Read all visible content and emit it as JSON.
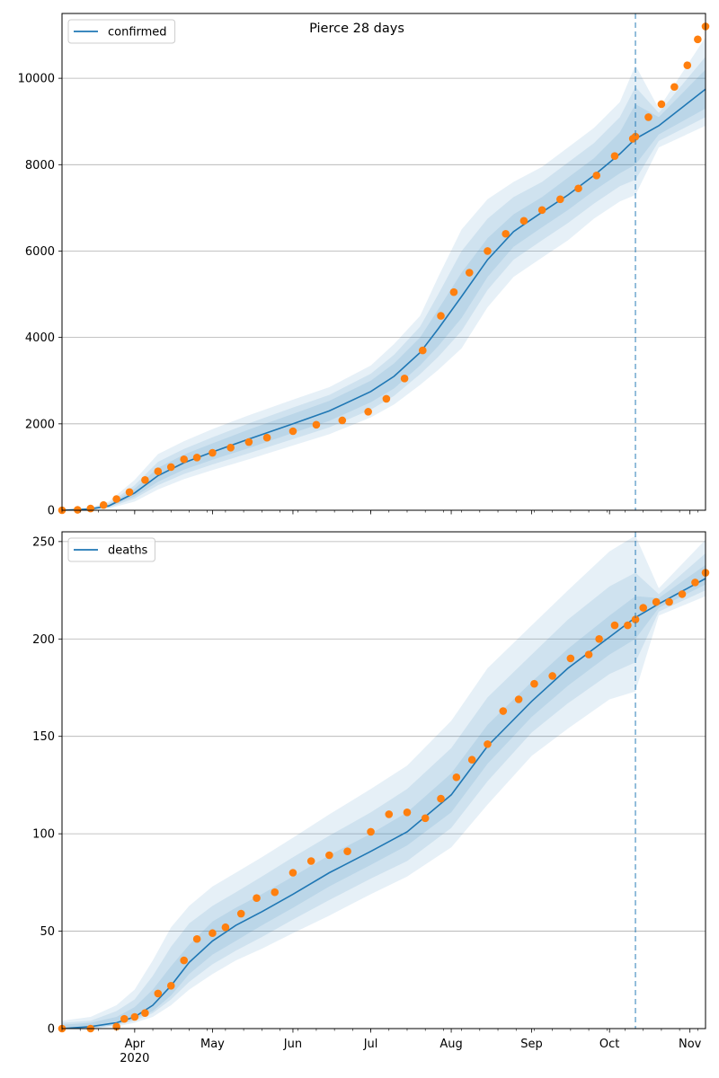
{
  "title": "Pierce 28 days",
  "colors": {
    "model_line": "#1f77b4",
    "band": "#1f77b4",
    "observed": "#ff7f0e",
    "vline": "#1f77b4",
    "grid": "#b0b0b0"
  },
  "x_axis": {
    "start": "2020-03-04",
    "end": "2020-11-07",
    "month_ticks": [
      {
        "date": "2020-04-01",
        "label": "Apr"
      },
      {
        "date": "2020-05-01",
        "label": "May"
      },
      {
        "date": "2020-06-01",
        "label": "Jun"
      },
      {
        "date": "2020-07-01",
        "label": "Jul"
      },
      {
        "date": "2020-08-01",
        "label": "Aug"
      },
      {
        "date": "2020-09-01",
        "label": "Sep"
      },
      {
        "date": "2020-10-01",
        "label": "Oct"
      },
      {
        "date": "2020-11-01",
        "label": "Nov"
      }
    ],
    "year_label": "2020",
    "forecast_start": "2020-10-11"
  },
  "chart_data": [
    {
      "type": "line",
      "legend": "confirmed",
      "legend_position": "upper-left",
      "ylim": [
        0,
        11500
      ],
      "yticks": [
        0,
        2000,
        4000,
        6000,
        8000,
        10000
      ],
      "grid": "horizontal",
      "model": {
        "x": [
          "2020-03-04",
          "2020-03-15",
          "2020-03-22",
          "2020-04-01",
          "2020-04-10",
          "2020-04-20",
          "2020-05-01",
          "2020-05-15",
          "2020-06-01",
          "2020-06-15",
          "2020-07-01",
          "2020-07-10",
          "2020-07-20",
          "2020-07-27",
          "2020-08-05",
          "2020-08-15",
          "2020-08-25",
          "2020-09-05",
          "2020-09-15",
          "2020-09-25",
          "2020-10-05",
          "2020-10-11",
          "2020-10-20",
          "2020-11-07"
        ],
        "median": [
          0,
          30,
          100,
          400,
          800,
          1100,
          1350,
          1650,
          2000,
          2300,
          2750,
          3100,
          3650,
          4200,
          4950,
          5800,
          6450,
          6900,
          7300,
          7750,
          8250,
          8600,
          8900,
          9750
        ],
        "bands": [
          {
            "lower": [
              0,
              10,
              40,
              200,
              480,
              720,
              930,
              1180,
              1500,
              1760,
              2150,
              2450,
              2900,
              3250,
              3750,
              4700,
              5400,
              5850,
              6250,
              6750,
              7150,
              7300,
              8400,
              8900
            ],
            "upper": [
              0,
              60,
              200,
              700,
              1300,
              1600,
              1880,
              2200,
              2560,
              2850,
              3350,
              3850,
              4500,
              5400,
              6500,
              7200,
              7600,
              7950,
              8400,
              8850,
              9450,
              10300,
              9300,
              10950
            ]
          },
          {
            "lower": [
              0,
              15,
              60,
              270,
              580,
              840,
              1060,
              1320,
              1650,
              1920,
              2330,
              2650,
              3150,
              3550,
              4150,
              5100,
              5800,
              6250,
              6650,
              7100,
              7500,
              7650,
              8550,
              9100
            ],
            "upper": [
              0,
              50,
              160,
              580,
              1120,
              1420,
              1690,
              2010,
              2380,
              2670,
              3160,
              3600,
              4250,
              5000,
              6000,
              6750,
              7250,
              7600,
              8050,
              8500,
              9100,
              9800,
              9200,
              10500
            ]
          },
          {
            "lower": [
              0,
              20,
              80,
              320,
              660,
              940,
              1170,
              1440,
              1790,
              2070,
              2500,
              2820,
              3350,
              3800,
              4450,
              5400,
              6100,
              6550,
              6950,
              7400,
              7800,
              8000,
              8700,
              9300
            ],
            "upper": [
              0,
              42,
              130,
              500,
              980,
              1290,
              1550,
              1870,
              2230,
              2530,
              3000,
              3400,
              4000,
              4650,
              5500,
              6300,
              6850,
              7250,
              7700,
              8150,
              8750,
              9400,
              9100,
              10200
            ]
          }
        ]
      },
      "observed": {
        "x": [
          "2020-03-04",
          "2020-03-10",
          "2020-03-15",
          "2020-03-20",
          "2020-03-25",
          "2020-03-30",
          "2020-04-05",
          "2020-04-10",
          "2020-04-15",
          "2020-04-20",
          "2020-04-25",
          "2020-05-01",
          "2020-05-08",
          "2020-05-15",
          "2020-05-22",
          "2020-06-01",
          "2020-06-10",
          "2020-06-20",
          "2020-06-30",
          "2020-07-07",
          "2020-07-14",
          "2020-07-21",
          "2020-07-28",
          "2020-08-02",
          "2020-08-08",
          "2020-08-15",
          "2020-08-22",
          "2020-08-29",
          "2020-09-05",
          "2020-09-12",
          "2020-09-19",
          "2020-09-26",
          "2020-10-03",
          "2020-10-10",
          "2020-10-11",
          "2020-10-16",
          "2020-10-21",
          "2020-10-26",
          "2020-10-31",
          "2020-11-04",
          "2020-11-07"
        ],
        "y": [
          0,
          10,
          40,
          120,
          260,
          420,
          700,
          900,
          1000,
          1180,
          1220,
          1330,
          1450,
          1580,
          1680,
          1830,
          1980,
          2080,
          2280,
          2580,
          3050,
          3700,
          4500,
          5050,
          5500,
          6000,
          6400,
          6700,
          6950,
          7200,
          7450,
          7750,
          8200,
          8600,
          8650,
          9100,
          9400,
          9800,
          10300,
          10900,
          11200
        ]
      }
    },
    {
      "type": "line",
      "legend": "deaths",
      "legend_position": "upper-left",
      "ylim": [
        0,
        255
      ],
      "yticks": [
        0,
        50,
        100,
        150,
        200,
        250
      ],
      "grid": "horizontal",
      "model": {
        "x": [
          "2020-03-04",
          "2020-03-15",
          "2020-03-25",
          "2020-04-01",
          "2020-04-08",
          "2020-04-15",
          "2020-04-22",
          "2020-05-01",
          "2020-05-10",
          "2020-05-20",
          "2020-06-01",
          "2020-06-15",
          "2020-07-01",
          "2020-07-15",
          "2020-08-01",
          "2020-08-15",
          "2020-09-01",
          "2020-09-15",
          "2020-10-01",
          "2020-10-11",
          "2020-10-20",
          "2020-11-07"
        ],
        "median": [
          0,
          1,
          3,
          6,
          12,
          22,
          34,
          45,
          53,
          60,
          69,
          80,
          91,
          101,
          120,
          145,
          168,
          185,
          201,
          211,
          218,
          231
        ],
        "bands": [
          {
            "lower": [
              0,
              0,
              1,
              3,
              6,
              12,
              20,
              28,
              35,
              41,
              49,
              58,
              69,
              78,
              93,
              115,
              140,
              154,
              169,
              173,
              212,
              222
            ],
            "upper": [
              4,
              6,
              12,
              20,
              35,
              52,
              63,
              73,
              80,
              88,
              98,
              110,
              123,
              135,
              158,
              185,
              207,
              225,
              245,
              253,
              226,
              251
            ]
          },
          {
            "lower": [
              0,
              0,
              2,
              4,
              8,
              15,
              24,
              33,
              40,
              47,
              56,
              66,
              77,
              86,
              103,
              127,
              152,
              167,
              182,
              188,
              214,
              225
            ],
            "upper": [
              3,
              4,
              9,
              15,
              27,
              42,
              54,
              63,
              70,
              78,
              88,
              99,
              111,
              123,
              144,
              170,
              192,
              210,
              227,
              234,
              223,
              244
            ]
          },
          {
            "lower": [
              0,
              0,
              2,
              5,
              9,
              17,
              28,
              38,
              45,
              53,
              62,
              73,
              84,
              94,
              111,
              136,
              160,
              176,
              192,
              200,
              216,
              228
            ],
            "upper": [
              2,
              3,
              6,
              11,
              20,
              32,
              43,
              55,
              62,
              69,
              78,
              89,
              100,
              111,
              131,
              156,
              178,
              195,
              212,
              222,
              221,
              238
            ]
          }
        ]
      },
      "observed": {
        "x": [
          "2020-03-04",
          "2020-03-15",
          "2020-03-25",
          "2020-03-28",
          "2020-04-01",
          "2020-04-05",
          "2020-04-10",
          "2020-04-15",
          "2020-04-20",
          "2020-04-25",
          "2020-05-01",
          "2020-05-06",
          "2020-05-12",
          "2020-05-18",
          "2020-05-25",
          "2020-06-01",
          "2020-06-08",
          "2020-06-15",
          "2020-06-22",
          "2020-07-01",
          "2020-07-08",
          "2020-07-15",
          "2020-07-22",
          "2020-07-28",
          "2020-08-03",
          "2020-08-09",
          "2020-08-15",
          "2020-08-21",
          "2020-08-27",
          "2020-09-02",
          "2020-09-09",
          "2020-09-16",
          "2020-09-23",
          "2020-09-27",
          "2020-10-03",
          "2020-10-08",
          "2020-10-11",
          "2020-10-14",
          "2020-10-19",
          "2020-10-24",
          "2020-10-29",
          "2020-11-03",
          "2020-11-07"
        ],
        "y": [
          0,
          0,
          1,
          5,
          6,
          8,
          18,
          22,
          35,
          46,
          49,
          52,
          59,
          67,
          70,
          80,
          86,
          89,
          91,
          101,
          110,
          111,
          108,
          118,
          129,
          138,
          146,
          163,
          169,
          177,
          181,
          190,
          192,
          200,
          207,
          207,
          210,
          216,
          219,
          219,
          223,
          229,
          234
        ]
      }
    }
  ]
}
